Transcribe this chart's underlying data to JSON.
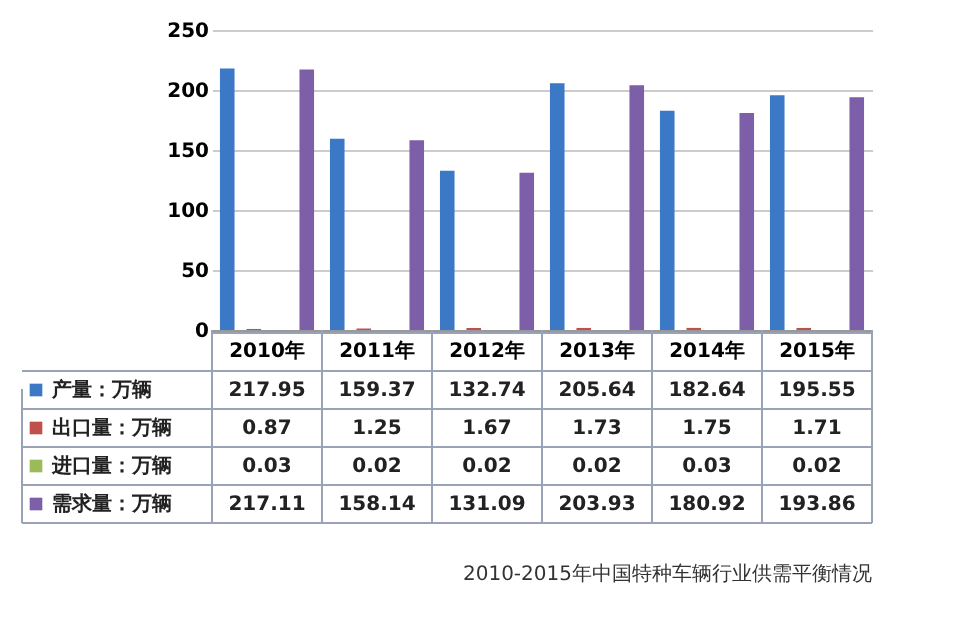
{
  "chart_data": {
    "type": "bar",
    "title": "2010-2015年中国特种车辆行业供需平衡情况",
    "categories": [
      "2010年",
      "2011年",
      "2012年",
      "2013年",
      "2014年",
      "2015年"
    ],
    "series": [
      {
        "name": "产量：万辆",
        "color": "#3b78c6",
        "values": [
          217.95,
          159.37,
          132.74,
          205.64,
          182.64,
          195.55
        ]
      },
      {
        "name": "出口量：万辆",
        "color": "#c0504d",
        "values": [
          0.87,
          1.25,
          1.67,
          1.73,
          1.75,
          1.71
        ]
      },
      {
        "name": "进口量：万辆",
        "color": "#9bbb59",
        "values": [
          0.03,
          0.02,
          0.02,
          0.02,
          0.03,
          0.02
        ]
      },
      {
        "name": "需求量：万辆",
        "color": "#7d5ea8",
        "values": [
          217.11,
          158.14,
          131.09,
          203.93,
          180.92,
          193.86
        ]
      }
    ],
    "ylim": [
      0,
      250
    ],
    "yticks": [
      0,
      50,
      100,
      150,
      200,
      250
    ],
    "grid": "y",
    "legend": "bottom",
    "data_labels": true
  }
}
